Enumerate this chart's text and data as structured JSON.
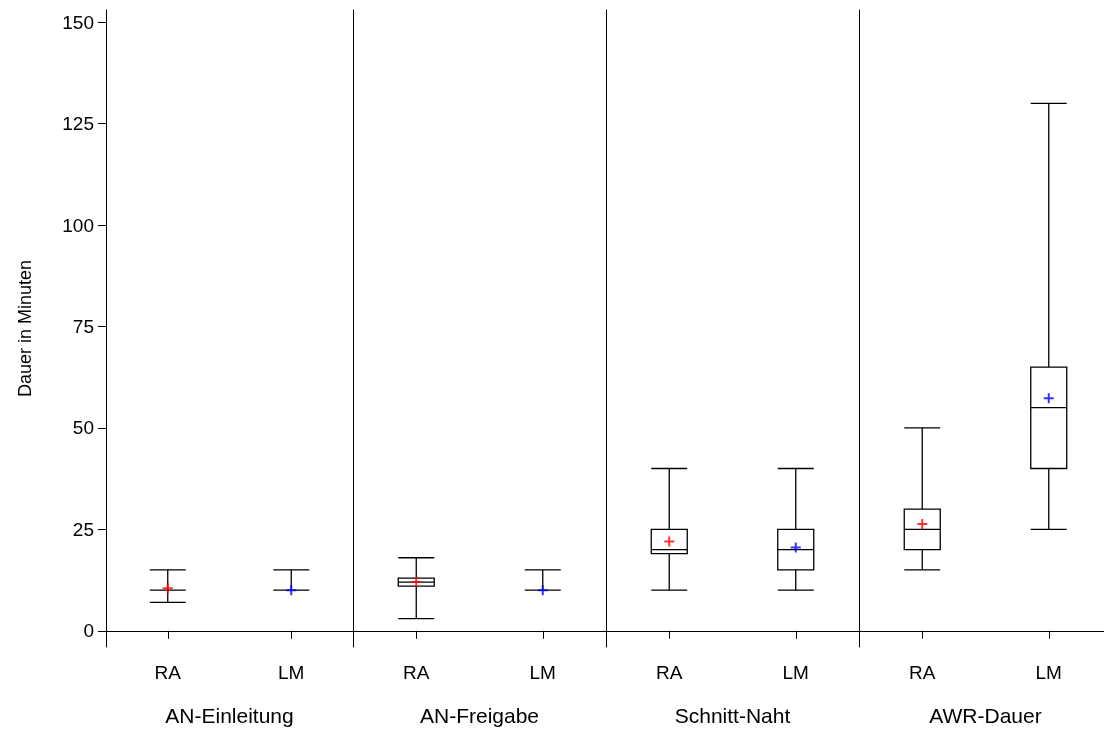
{
  "chart_data": [
    {
      "type": "box",
      "xlabel": "AN-Einleitung",
      "ylabel": "Dauer in Minuten",
      "categories": [
        "RA",
        "LM"
      ],
      "color": "#000000",
      "marker": "cross",
      "ylim": [
        -4,
        153
      ],
      "yticks": [
        0,
        25,
        50,
        75,
        100,
        125,
        150
      ],
      "grid": false,
      "boxes": [
        {
          "low": 7,
          "q1": 10,
          "median": 10,
          "q3": 10,
          "high": 15,
          "mean": 10.5
        },
        {
          "low": 10,
          "q1": 10,
          "median": 10,
          "q3": 10,
          "high": 15,
          "mean": 10
        }
      ]
    },
    {
      "type": "box",
      "xlabel": "AN-Freigabe",
      "categories": [
        "RA",
        "LM"
      ],
      "color": "#000000",
      "marker": "cross",
      "ylim": [
        -4,
        153
      ],
      "yticks": [
        0,
        25,
        50,
        75,
        100,
        125,
        150
      ],
      "grid": false,
      "tick_labels": "x",
      "boxes": [
        {
          "low": 3,
          "q1": 11,
          "median": 12,
          "q3": 13,
          "high": 18,
          "mean": 12
        },
        {
          "low": 10,
          "q1": 10,
          "median": 10,
          "q3": 10,
          "high": 15,
          "mean": 10
        }
      ]
    },
    {
      "type": "box",
      "xlabel": "Schnitt-Naht",
      "categories": [
        "RA",
        "LM"
      ],
      "color": "#000000",
      "marker": "cross",
      "ylim": [
        -4,
        153
      ],
      "yticks": [
        0,
        25,
        50,
        75,
        100,
        125,
        150
      ],
      "grid": false,
      "tick_labels": "x",
      "boxes": [
        {
          "low": 10,
          "q1": 19,
          "median": 20,
          "q3": 25,
          "high": 40,
          "mean": 22
        },
        {
          "low": 10,
          "q1": 15,
          "median": 20,
          "q3": 25,
          "high": 40,
          "mean": 20.5
        }
      ]
    },
    {
      "type": "box",
      "xlabel": "AWR-Dauer",
      "categories": [
        "RA",
        "LM"
      ],
      "color": "#000000",
      "marker": "cross",
      "ylim": [
        -4,
        153
      ],
      "yticks": [
        0,
        25,
        50,
        75,
        100,
        125,
        150
      ],
      "grid": false,
      "tick_labels": "x",
      "boxes": [
        {
          "low": 15,
          "q1": 20,
          "median": 25,
          "q3": 30,
          "high": 50,
          "mean": 26.3
        },
        {
          "low": 25,
          "q1": 40,
          "median": 55,
          "q3": 65,
          "high": 130,
          "mean": 57.3
        }
      ]
    }
  ]
}
